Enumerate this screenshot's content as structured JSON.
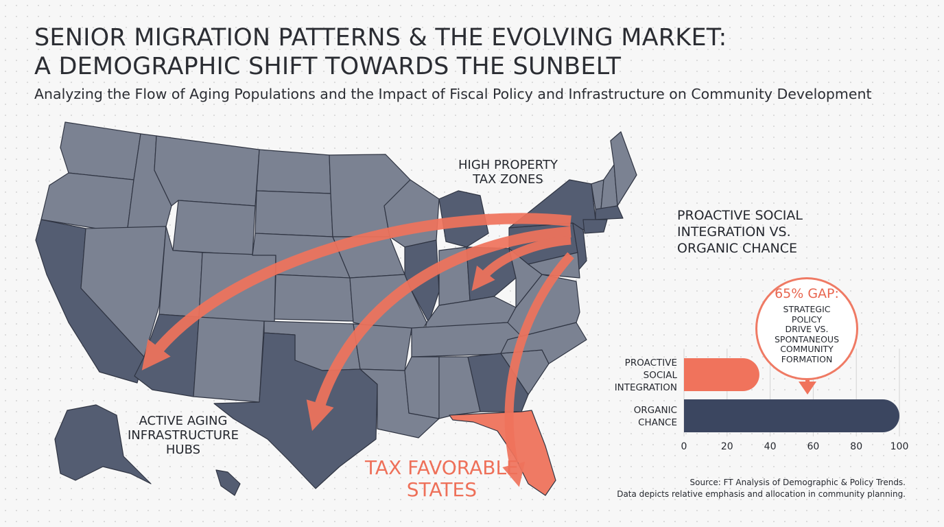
{
  "header": {
    "title_line1": "SENIOR MIGRATION PATTERNS & THE EVOLVING MARKET:",
    "title_line2": "A DEMOGRAPHIC SHIFT TOWARDS THE SUNBELT",
    "subtitle": "Analyzing the Flow of Aging Populations and the Impact of Fiscal Policy and Infrastructure on Community Development"
  },
  "map": {
    "label_high_tax": [
      "HIGH PROPERTY",
      "TAX ZONES"
    ],
    "label_hubs": [
      "ACTIVE AGING",
      "INFRASTRUCTURE",
      "HUBS"
    ],
    "label_tax_favorable": [
      "TAX FAVORABLE",
      "STATES"
    ],
    "colors": {
      "default_state": "#7b8292",
      "highlight_state": "#545d72",
      "tax_favorable_state": "#ef7a64",
      "state_border": "#2f3442",
      "migration_arrow": "#f0735c"
    },
    "migration_flows": [
      {
        "from": "Northeast (New York)",
        "to": "Arizona"
      },
      {
        "from": "Northeast (New York)",
        "to": "Texas"
      },
      {
        "from": "Northeast (Pennsylvania)",
        "to": "Ohio"
      },
      {
        "from": "Northeast (New Jersey)",
        "to": "Florida"
      }
    ]
  },
  "panel": {
    "title": [
      "PROACTIVE SOCIAL",
      "INTEGRATION VS.",
      "ORGANIC CHANCE"
    ],
    "callout_headline": "65% GAP:",
    "callout_body": [
      "STRATEGIC POLICY",
      "DRIVE VS.",
      "SPONTANEOUS",
      "COMMUNITY",
      "FORMATION"
    ]
  },
  "chart_data": {
    "type": "bar",
    "orientation": "horizontal",
    "categories": [
      "PROACTIVE SOCIAL INTEGRATION",
      "ORGANIC CHANCE"
    ],
    "category_lines": [
      [
        "PROACTIVE",
        "SOCIAL",
        "INTEGRATION"
      ],
      [
        "ORGANIC",
        "CHANCE"
      ]
    ],
    "values": [
      35,
      100
    ],
    "colors": [
      "#f0735c",
      "#3b4660"
    ],
    "xlim": [
      0,
      100
    ],
    "xticks": [
      0,
      20,
      40,
      60,
      80,
      100
    ],
    "grid": true,
    "annotation": "65% GAP"
  },
  "footer": {
    "source_line1": "Source: FT Analysis of Demographic & Policy Trends.",
    "source_line2": "Data depicts relative emphasis and allocation in community planning."
  }
}
